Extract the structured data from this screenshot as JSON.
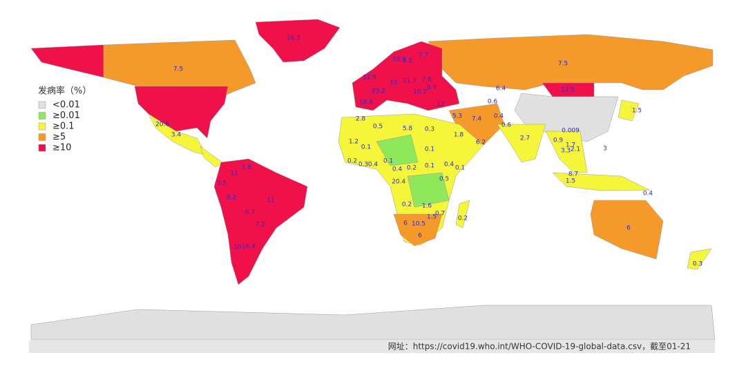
{
  "legend": {
    "title": "发病率（%）",
    "items": [
      {
        "label": "<0.01",
        "color": "#e0e0e0"
      },
      {
        "label": "≥0.01",
        "color": "#8ee85a"
      },
      {
        "label": "≥0.1",
        "color": "#f5f53a"
      },
      {
        "label": "≥5",
        "color": "#f59a2a"
      },
      {
        "label": "≥10",
        "color": "#f0114a"
      }
    ]
  },
  "labels": [
    "16.3",
    "7.5",
    "20.6",
    "3.4",
    "10.6",
    "8.2",
    "7.7",
    "7.5",
    "7.6",
    "12.9",
    "10",
    "11.7",
    "8.7",
    "6.4",
    "12.5",
    "23.2",
    "10.2",
    "18.6",
    "12",
    "0.6",
    "0.009",
    "1.5",
    "2.8",
    "0.5",
    "5.8",
    "0.3",
    "5.3",
    "7.4",
    "0.4",
    "0.6",
    "1.8",
    "2.7",
    "0.9",
    "1.2",
    "0.1",
    "0.1",
    "6.2",
    "1.7",
    "3.3",
    "2.1",
    "0.2",
    "0.3",
    "0.4",
    "0.1",
    "0.4",
    "0.2",
    "0.1",
    "0.4",
    "0.1",
    "3",
    "8.7",
    "1.5",
    "1.6",
    "11",
    "3.5",
    "2",
    "0.4",
    "0.5",
    "0.4",
    "8.2",
    "11",
    "0.2",
    "1.6",
    "6.7",
    "1.5",
    "0.7",
    "0.2",
    "7.2",
    "6",
    "10.5",
    "6",
    "6",
    "10",
    "16.4",
    "0.3"
  ],
  "source": "网址：https://covid19.who.int/WHO-COVID-19-global-data.csv，截至01-21"
}
